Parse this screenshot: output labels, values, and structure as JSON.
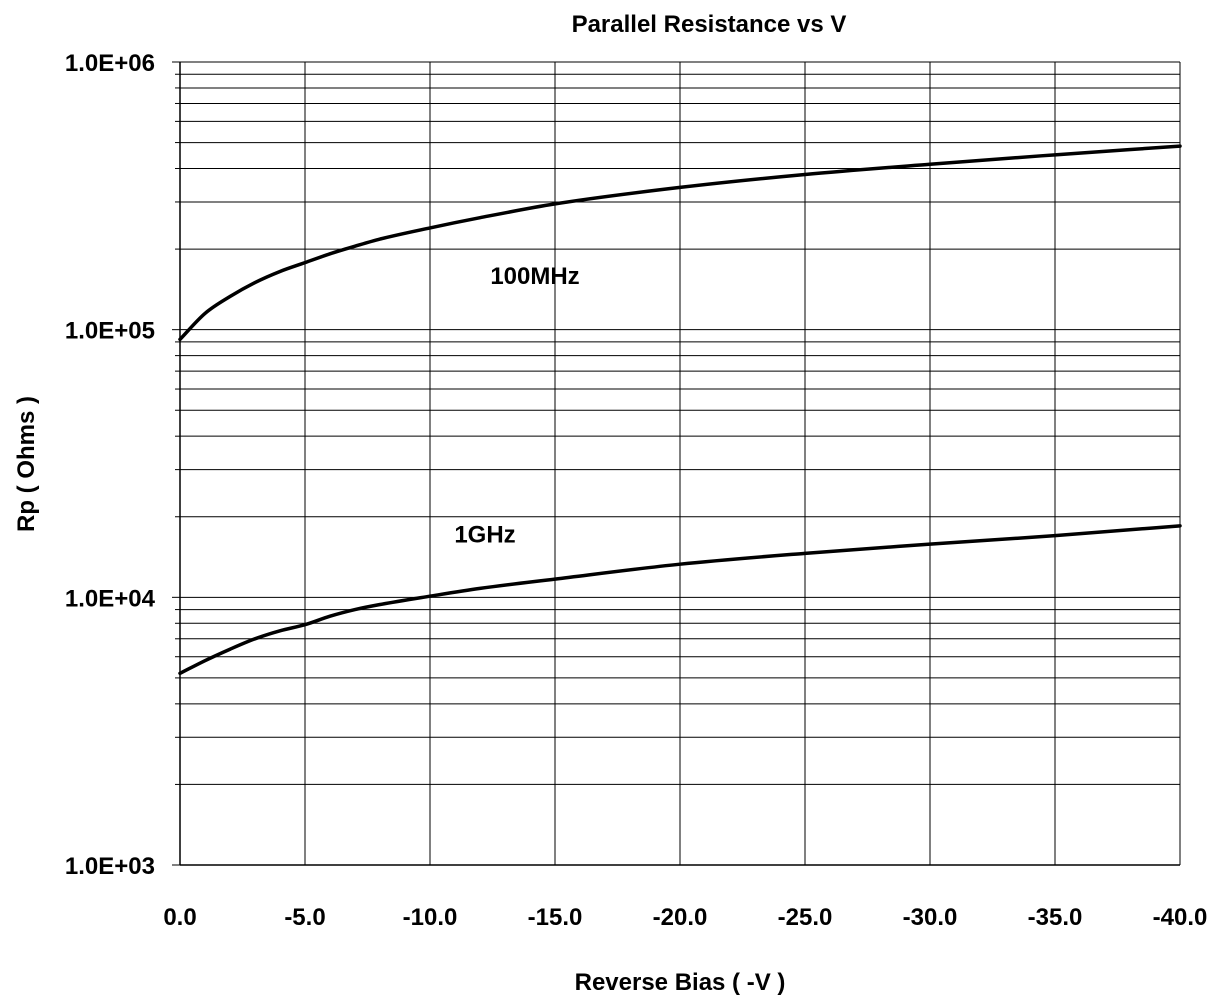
{
  "chart_data": {
    "type": "line",
    "title": "Parallel Resistance vs V",
    "xlabel": "Reverse Bias ( -V )",
    "ylabel": "Rp ( Ohms )",
    "xlim": [
      0,
      -40
    ],
    "ylim": [
      1000,
      1000000
    ],
    "yscale": "log",
    "grid": true,
    "legend": "none",
    "x_ticks": [
      0,
      -5,
      -10,
      -15,
      -20,
      -25,
      -30,
      -35,
      -40
    ],
    "x_tick_labels": [
      "0.0",
      "-5.0",
      "-10.0",
      "-15.0",
      "-20.0",
      "-25.0",
      "-30.0",
      "-35.0",
      "-40.0"
    ],
    "y_ticks": [
      1000,
      10000,
      100000,
      1000000
    ],
    "y_tick_labels": [
      "1.0E+03",
      "1.0E+04",
      "1.0E+05",
      "1.0E+06"
    ],
    "series": [
      {
        "name": "100MHz",
        "x": [
          0,
          -1,
          -2,
          -3,
          -4,
          -5,
          -6,
          -7,
          -8,
          -10,
          -12,
          -15,
          -20,
          -25,
          -30,
          -35,
          -40
        ],
        "y": [
          92000,
          115000,
          133000,
          150000,
          165000,
          178000,
          192000,
          205000,
          218000,
          240000,
          262000,
          295000,
          340000,
          380000,
          415000,
          450000,
          485000
        ],
        "label_at": [
          -14.2,
          148000
        ]
      },
      {
        "name": "1GHz",
        "x": [
          0,
          -1,
          -2,
          -3,
          -4,
          -5,
          -6,
          -7,
          -8,
          -10,
          -12,
          -15,
          -20,
          -25,
          -30,
          -35,
          -40
        ],
        "y": [
          5200,
          5800,
          6400,
          7000,
          7500,
          7900,
          8500,
          9000,
          9400,
          10100,
          10800,
          11700,
          13300,
          14600,
          15800,
          17000,
          18500
        ],
        "label_at": [
          -12.2,
          16000
        ]
      }
    ],
    "colors": {
      "line": "#000000",
      "grid": "#000000",
      "background": "#ffffff"
    }
  }
}
